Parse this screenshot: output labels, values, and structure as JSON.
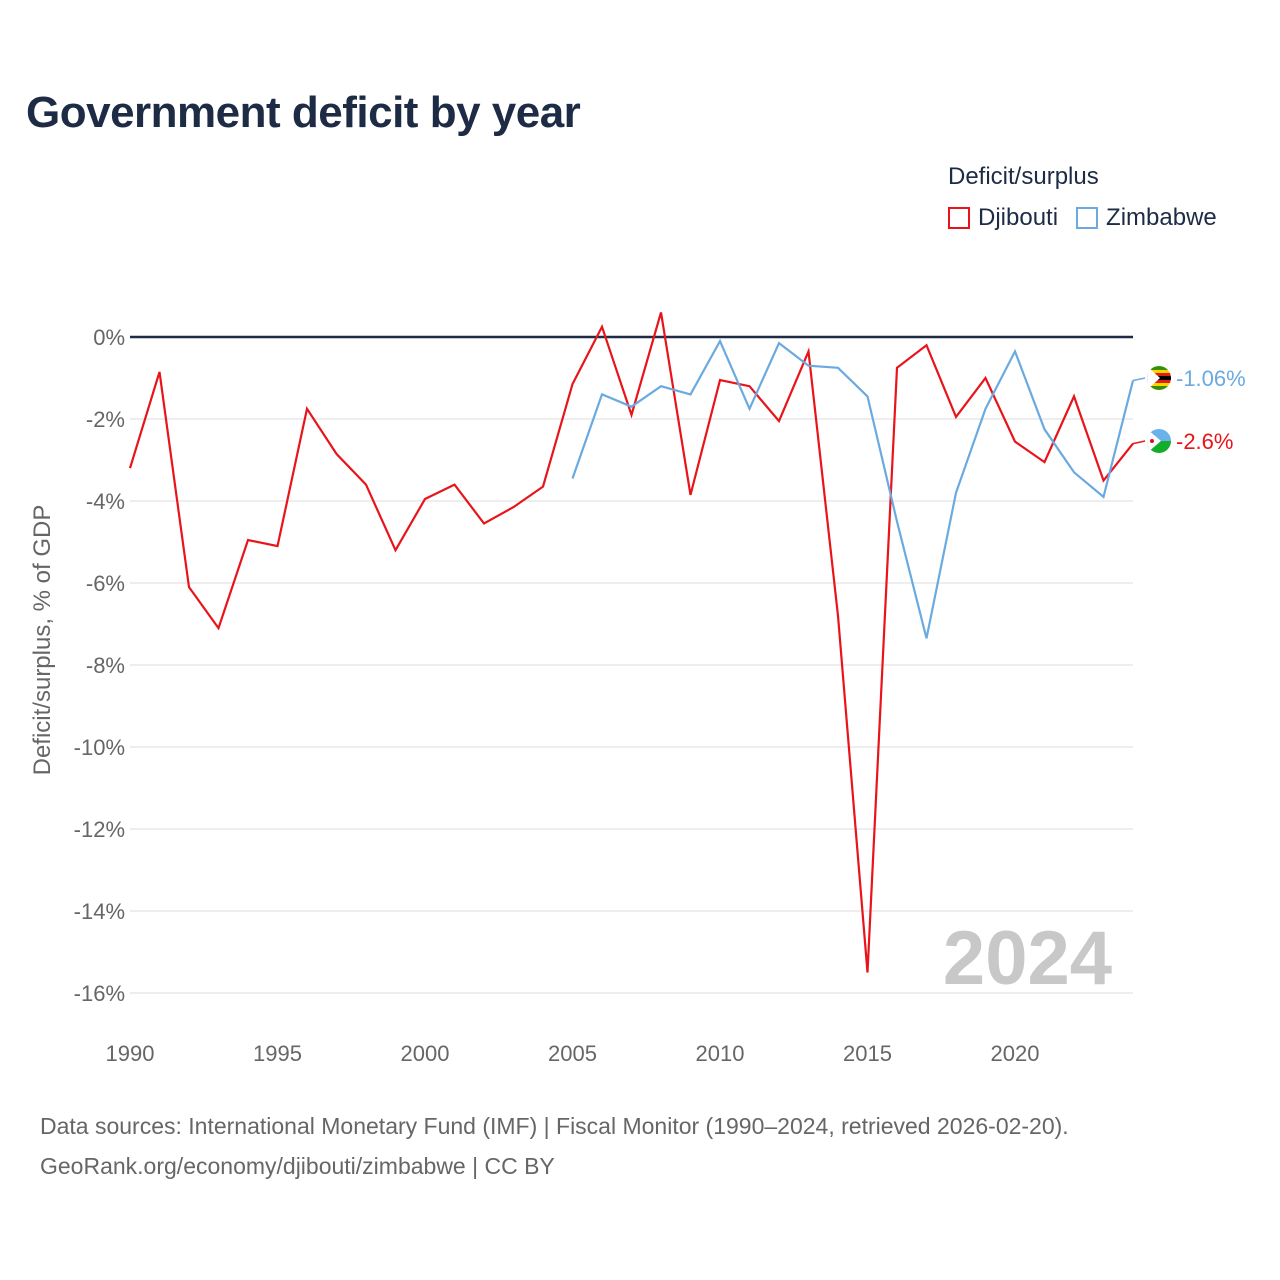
{
  "title": "Government deficit by year",
  "legend": {
    "title": "Deficit/surplus",
    "items": [
      {
        "label": "Djibouti",
        "color": "#e8141a"
      },
      {
        "label": "Zimbabwe",
        "color": "#6aaae0"
      }
    ]
  },
  "year_label": "2024",
  "source": {
    "line1": "Data sources: International Monetary Fund (IMF) | Fiscal Monitor (1990–2024, retrieved 2026-02-20).",
    "line2": "GeoRank.org/economy/djibouti/zimbabwe | CC BY"
  },
  "chart_data": {
    "type": "line",
    "title": "Government deficit by year",
    "xlabel": "",
    "ylabel": "Deficit/surplus, % of GDP",
    "xlim": [
      1990,
      2024
    ],
    "ylim": [
      -16.5,
      0.8
    ],
    "x_ticks": [
      1990,
      1995,
      2000,
      2005,
      2010,
      2015,
      2020
    ],
    "y_ticks": [
      0,
      -2,
      -4,
      -6,
      -8,
      -10,
      -12,
      -14,
      -16
    ],
    "y_tick_labels": [
      "0%",
      "-2%",
      "-4%",
      "-6%",
      "-8%",
      "-10%",
      "-12%",
      "-14%",
      "-16%"
    ],
    "series": [
      {
        "name": "Djibouti",
        "color": "#e8141a",
        "end_label": "-2.6%",
        "x": [
          1990,
          1991,
          1992,
          1993,
          1994,
          1995,
          1996,
          1997,
          1998,
          1999,
          2000,
          2001,
          2002,
          2003,
          2004,
          2005,
          2006,
          2007,
          2008,
          2009,
          2010,
          2011,
          2012,
          2013,
          2014,
          2015,
          2016,
          2017,
          2018,
          2019,
          2020,
          2021,
          2022,
          2023,
          2024
        ],
        "y": [
          -3.2,
          -0.85,
          -6.1,
          -7.1,
          -4.95,
          -5.1,
          -1.75,
          -2.85,
          -3.6,
          -5.2,
          -3.95,
          -3.6,
          -4.55,
          -4.15,
          -3.65,
          -1.15,
          0.25,
          -1.9,
          0.6,
          -3.85,
          -1.05,
          -1.2,
          -2.05,
          -0.35,
          -6.8,
          -15.5,
          -0.75,
          -0.2,
          -1.95,
          -1.0,
          -2.55,
          -3.05,
          -1.45,
          -3.5,
          -2.6
        ]
      },
      {
        "name": "Zimbabwe",
        "color": "#6aaae0",
        "end_label": "-1.06%",
        "x": [
          2005,
          2006,
          2007,
          2008,
          2009,
          2010,
          2011,
          2012,
          2013,
          2014,
          2015,
          2016,
          2017,
          2018,
          2019,
          2020,
          2021,
          2022,
          2023,
          2024
        ],
        "y": [
          -3.45,
          -1.4,
          -1.7,
          -1.2,
          -1.4,
          -0.1,
          -1.75,
          -0.15,
          -0.7,
          -0.75,
          -1.45,
          -4.5,
          -7.35,
          -3.8,
          -1.75,
          -0.35,
          -2.25,
          -3.3,
          -3.9,
          -1.06
        ]
      }
    ]
  }
}
